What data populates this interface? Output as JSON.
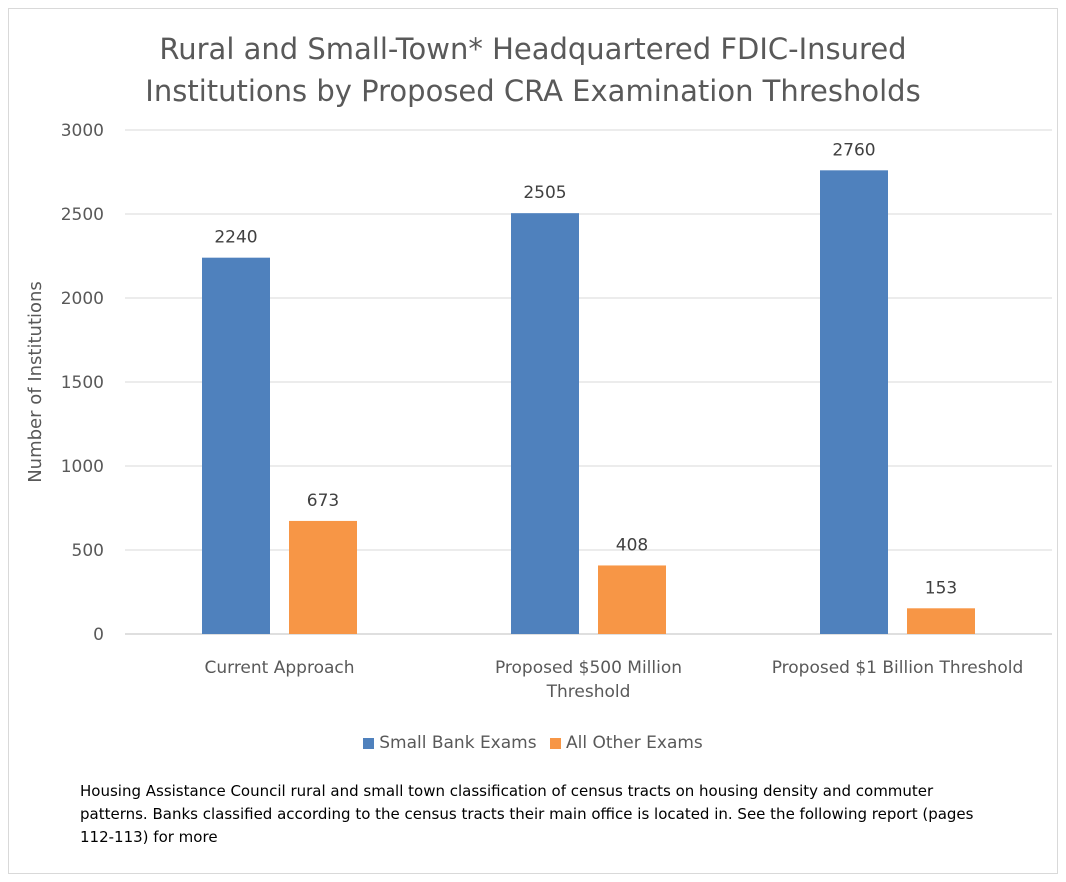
{
  "chart_data": {
    "type": "bar",
    "title": "Rural and Small-Town* Headquartered FDIC-Insured Institutions by Proposed CRA Examination Thresholds",
    "title_lines": [
      "Rural and Small-Town* Headquartered FDIC-Insured",
      "Institutions by Proposed CRA Examination Thresholds"
    ],
    "categories": [
      "Current Approach",
      "Proposed $500 Million Threshold",
      "Proposed $1 Billion Threshold"
    ],
    "category_lines": [
      [
        "Current Approach"
      ],
      [
        "Proposed $500 Million",
        "Threshold"
      ],
      [
        "Proposed $1 Billion Threshold"
      ]
    ],
    "series": [
      {
        "name": "Small Bank Exams",
        "values": [
          2240,
          2505,
          2760
        ],
        "color": "#4f81bd"
      },
      {
        "name": "All Other Exams",
        "values": [
          673,
          408,
          153
        ],
        "color": "#f79646"
      }
    ],
    "ylabel": "Number of Institutions",
    "xlabel": "",
    "ylim": [
      0,
      3000
    ],
    "yticks": [
      0,
      500,
      1000,
      1500,
      2000,
      2500,
      3000
    ],
    "grid": true,
    "legend_position": "bottom",
    "data_labels": true
  },
  "note": "Housing Assistance Council rural and small town classification of census tracts on housing density and commuter patterns. Banks classified according to the census tracts their main office is located in. See the following report (pages 112-113) for more"
}
